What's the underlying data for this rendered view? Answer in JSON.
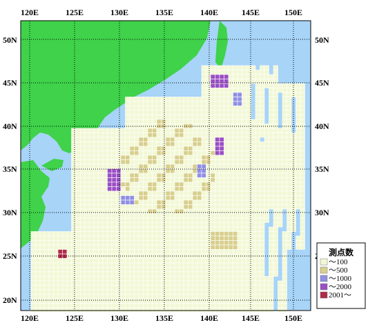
{
  "map": {
    "lon_ticks": [
      "120E",
      "125E",
      "130E",
      "135E",
      "140E",
      "145E",
      "150E"
    ],
    "lat_ticks": [
      "50N",
      "45N",
      "40N",
      "35N",
      "30N",
      "25N",
      "20N"
    ],
    "colors": {
      "sea": "#a7d4f7",
      "land": "#3fd24a",
      "grid": "#000000",
      "cell_100": "#f2f8d5",
      "cell_500": "#d8cf8d",
      "cell_1000": "#8f8fe6",
      "cell_2000": "#9a4fc4",
      "cell_2001": "#b02a4a"
    }
  },
  "legend": {
    "title": "測点数",
    "items": [
      {
        "label": "～100",
        "color": "#f2f8d5"
      },
      {
        "label": "～500",
        "color": "#d8cf8d"
      },
      {
        "label": "～1000",
        "color": "#8f8fe6"
      },
      {
        "label": "～2000",
        "color": "#9a4fc4"
      },
      {
        "label": "2001～",
        "color": "#b02a4a"
      }
    ]
  }
}
